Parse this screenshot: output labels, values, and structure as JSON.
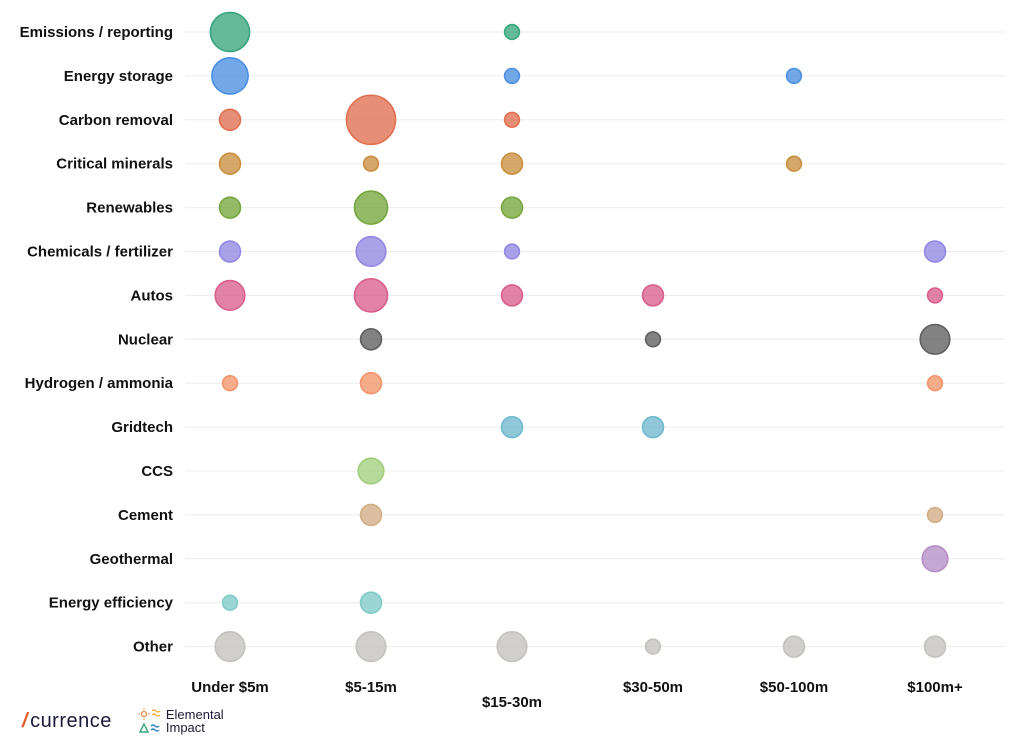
{
  "chart_data": {
    "type": "bubble",
    "title": "",
    "xlabel": "",
    "ylabel": "",
    "categories": [
      "Emissions / reporting",
      "Energy storage",
      "Carbon removal",
      "Critical minerals",
      "Renewables",
      "Chemicals / fertilizer",
      "Autos",
      "Nuclear",
      "Hydrogen / ammonia",
      "Gridtech",
      "CCS",
      "Cement",
      "Geothermal",
      "Energy efficiency",
      "Other"
    ],
    "x": [
      "Under $5m",
      "$5-15m",
      "$15-30m",
      "$30-50m",
      "$50-100m",
      "$100m+"
    ],
    "colors": {
      "Emissions / reporting": "#3aa67e",
      "Energy storage": "#4a90e2",
      "Carbon removal": "#e0704f",
      "Critical minerals": "#c98f3f",
      "Renewables": "#76a73e",
      "Chemicals / fertilizer": "#9188e3",
      "Autos": "#d95f8d",
      "Nuclear": "#5f5f5f",
      "Hydrogen / ammonia": "#f2956a",
      "Gridtech": "#71b9cf",
      "CCS": "#a2cf7d",
      "Cement": "#d2ad85",
      "Geothermal": "#b48fc7",
      "Energy efficiency": "#7fcbc8",
      "Other": "#c4c2bc"
    },
    "series": [
      {
        "name": "Emissions / reporting",
        "values": [
          7,
          null,
          1,
          null,
          null,
          null
        ]
      },
      {
        "name": "Energy storage",
        "values": [
          6,
          null,
          1,
          null,
          1,
          null
        ]
      },
      {
        "name": "Carbon removal",
        "values": [
          2,
          11,
          1,
          null,
          null,
          null
        ]
      },
      {
        "name": "Critical minerals",
        "values": [
          2,
          1,
          2,
          null,
          1,
          null
        ]
      },
      {
        "name": "Renewables",
        "values": [
          2,
          5,
          2,
          null,
          null,
          null
        ]
      },
      {
        "name": "Chemicals / fertilizer",
        "values": [
          2,
          4,
          1,
          null,
          null,
          2
        ]
      },
      {
        "name": "Autos",
        "values": [
          4,
          5,
          2,
          2,
          null,
          1
        ]
      },
      {
        "name": "Nuclear",
        "values": [
          null,
          2,
          null,
          1,
          null,
          4
        ]
      },
      {
        "name": "Hydrogen / ammonia",
        "values": [
          1,
          2,
          null,
          null,
          null,
          1
        ]
      },
      {
        "name": "Gridtech",
        "values": [
          null,
          null,
          2,
          2,
          null,
          null
        ]
      },
      {
        "name": "CCS",
        "values": [
          null,
          3,
          null,
          null,
          null,
          null
        ]
      },
      {
        "name": "Cement",
        "values": [
          null,
          2,
          null,
          null,
          null,
          1
        ]
      },
      {
        "name": "Geothermal",
        "values": [
          null,
          null,
          null,
          null,
          null,
          3
        ]
      },
      {
        "name": "Energy efficiency",
        "values": [
          1,
          2,
          null,
          null,
          null,
          null
        ]
      },
      {
        "name": "Other",
        "values": [
          4,
          4,
          4,
          1,
          2,
          2
        ]
      }
    ],
    "grid": true,
    "legend": "none"
  },
  "logos": {
    "currence": "currence",
    "currence_mark": "/",
    "elemental_line1": "Elemental",
    "elemental_line2": "Impact"
  }
}
